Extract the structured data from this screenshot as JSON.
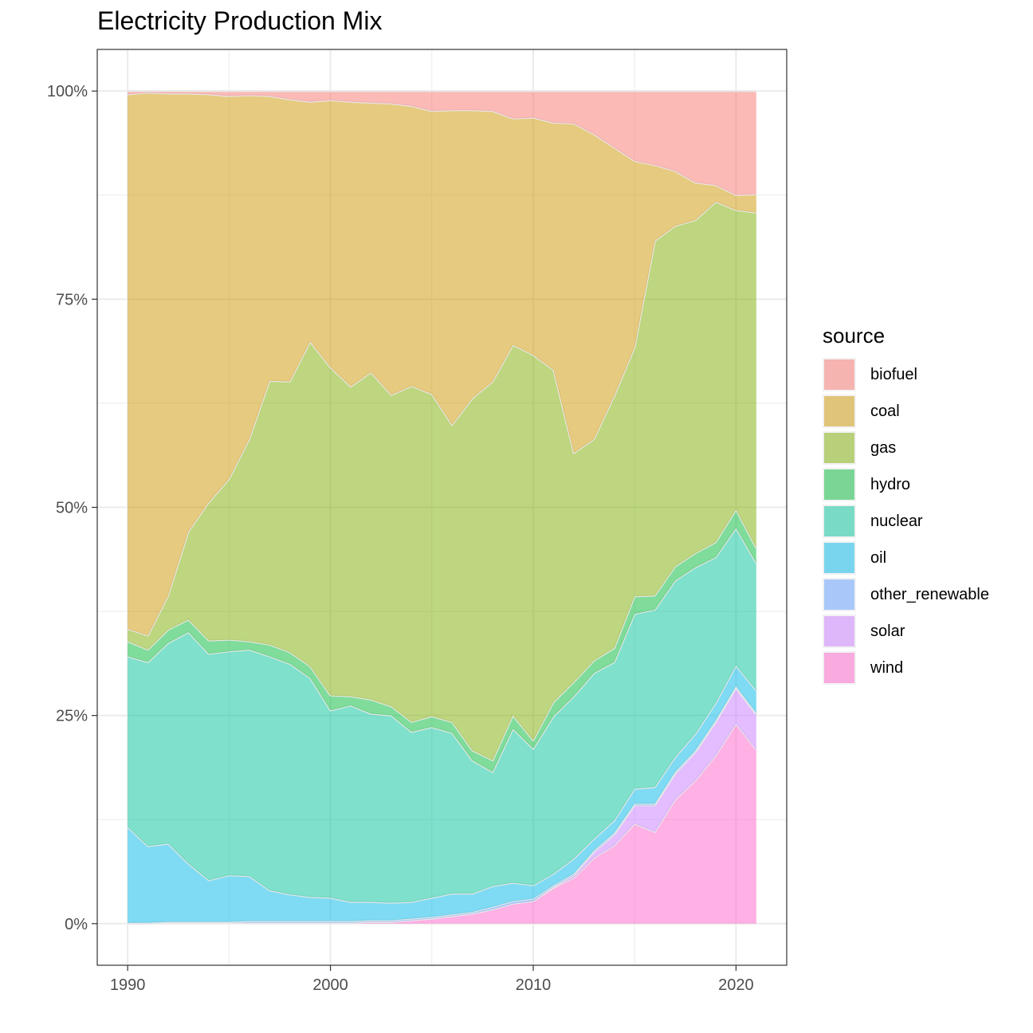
{
  "chart_data": {
    "type": "area",
    "stacked": "percent",
    "title": "Electricity Production Mix",
    "xlabel": "",
    "ylabel": "",
    "xlim": [
      1988.5,
      2022.5
    ],
    "ylim": [
      -0.05,
      1.05
    ],
    "x_ticks": [
      1990,
      2000,
      2010,
      2020
    ],
    "y_ticks": [
      0,
      0.25,
      0.5,
      0.75,
      1
    ],
    "y_tick_labels": [
      "0%",
      "25%",
      "50%",
      "75%",
      "100%"
    ],
    "grid": true,
    "legend": {
      "title": "source",
      "placement": "right"
    },
    "x": [
      1990,
      1991,
      1992,
      1993,
      1994,
      1995,
      1996,
      1997,
      1998,
      1999,
      2000,
      2001,
      2002,
      2003,
      2004,
      2005,
      2006,
      2007,
      2008,
      2009,
      2010,
      2011,
      2012,
      2013,
      2014,
      2015,
      2016,
      2017,
      2018,
      2019,
      2020,
      2021
    ],
    "series": [
      {
        "name": "wind",
        "color": "#FF61CC",
        "values": [
          0,
          0,
          0.001,
          0.001,
          0.001,
          0.001,
          0.001,
          0.001,
          0.001,
          0.001,
          0.001,
          0.001,
          0.002,
          0.002,
          0.004,
          0.006,
          0.009,
          0.012,
          0.017,
          0.024,
          0.027,
          0.043,
          0.055,
          0.079,
          0.094,
          0.12,
          0.11,
          0.149,
          0.172,
          0.202,
          0.24,
          0.209
        ]
      },
      {
        "name": "solar",
        "color": "#C77CFF",
        "values": [
          0,
          0,
          0,
          0,
          0,
          0,
          0,
          0,
          0,
          0,
          0,
          0,
          0,
          0,
          0,
          0,
          0,
          0,
          0,
          0,
          0,
          0.001,
          0.003,
          0.007,
          0.013,
          0.022,
          0.032,
          0.031,
          0.034,
          0.04,
          0.043,
          0.042
        ]
      },
      {
        "name": "other_renewable",
        "color": "#619CFF",
        "values": [
          0.001,
          0.001,
          0.001,
          0.001,
          0.001,
          0.001,
          0.002,
          0.002,
          0.002,
          0.002,
          0.002,
          0.002,
          0.002,
          0.002,
          0.002,
          0.002,
          0.002,
          0.002,
          0.003,
          0.003,
          0.003,
          0.002,
          0.002,
          0.002,
          0.002,
          0.002,
          0.002,
          0.002,
          0.002,
          0.002,
          0.002,
          0.002
        ]
      },
      {
        "name": "oil",
        "color": "#00B8E7",
        "values": [
          0.115,
          0.092,
          0.094,
          0.07,
          0.05,
          0.056,
          0.054,
          0.037,
          0.032,
          0.029,
          0.028,
          0.023,
          0.022,
          0.021,
          0.02,
          0.023,
          0.025,
          0.022,
          0.025,
          0.022,
          0.016,
          0.014,
          0.018,
          0.014,
          0.015,
          0.018,
          0.02,
          0.018,
          0.02,
          0.021,
          0.025,
          0.027
        ]
      },
      {
        "name": "nuclear",
        "color": "#00C19A",
        "values": [
          0.205,
          0.221,
          0.241,
          0.278,
          0.272,
          0.269,
          0.272,
          0.281,
          0.277,
          0.263,
          0.225,
          0.236,
          0.226,
          0.225,
          0.204,
          0.205,
          0.193,
          0.16,
          0.137,
          0.185,
          0.164,
          0.189,
          0.195,
          0.199,
          0.19,
          0.21,
          0.213,
          0.212,
          0.2,
          0.175,
          0.165,
          0.153
        ]
      },
      {
        "name": "hydro",
        "color": "#00BA38",
        "values": [
          0.018,
          0.015,
          0.016,
          0.015,
          0.016,
          0.014,
          0.01,
          0.014,
          0.014,
          0.014,
          0.018,
          0.011,
          0.017,
          0.011,
          0.012,
          0.013,
          0.013,
          0.012,
          0.014,
          0.016,
          0.01,
          0.017,
          0.017,
          0.015,
          0.017,
          0.021,
          0.017,
          0.017,
          0.017,
          0.018,
          0.022,
          0.018
        ]
      },
      {
        "name": "gas",
        "color": "#7CAE00",
        "values": [
          0.015,
          0.017,
          0.041,
          0.106,
          0.166,
          0.193,
          0.243,
          0.317,
          0.325,
          0.39,
          0.394,
          0.372,
          0.393,
          0.374,
          0.403,
          0.387,
          0.357,
          0.423,
          0.455,
          0.445,
          0.463,
          0.399,
          0.275,
          0.266,
          0.303,
          0.299,
          0.426,
          0.409,
          0.4,
          0.409,
          0.36,
          0.403
        ]
      },
      {
        "name": "coal",
        "color": "#CD9600",
        "values": [
          0.642,
          0.652,
          0.603,
          0.526,
          0.49,
          0.46,
          0.413,
          0.342,
          0.339,
          0.288,
          0.321,
          0.342,
          0.324,
          0.35,
          0.336,
          0.34,
          0.378,
          0.346,
          0.325,
          0.272,
          0.285,
          0.297,
          0.396,
          0.366,
          0.298,
          0.224,
          0.091,
          0.066,
          0.045,
          0.02,
          0.018,
          0.022
        ]
      },
      {
        "name": "biofuel",
        "color": "#F8766D",
        "values": [
          0.004,
          0.002,
          0.003,
          0.003,
          0.004,
          0.006,
          0.005,
          0.006,
          0.01,
          0.013,
          0.011,
          0.013,
          0.014,
          0.015,
          0.018,
          0.024,
          0.023,
          0.023,
          0.024,
          0.033,
          0.032,
          0.038,
          0.039,
          0.052,
          0.068,
          0.084,
          0.089,
          0.096,
          0.11,
          0.113,
          0.125,
          0.124
        ]
      }
    ]
  }
}
